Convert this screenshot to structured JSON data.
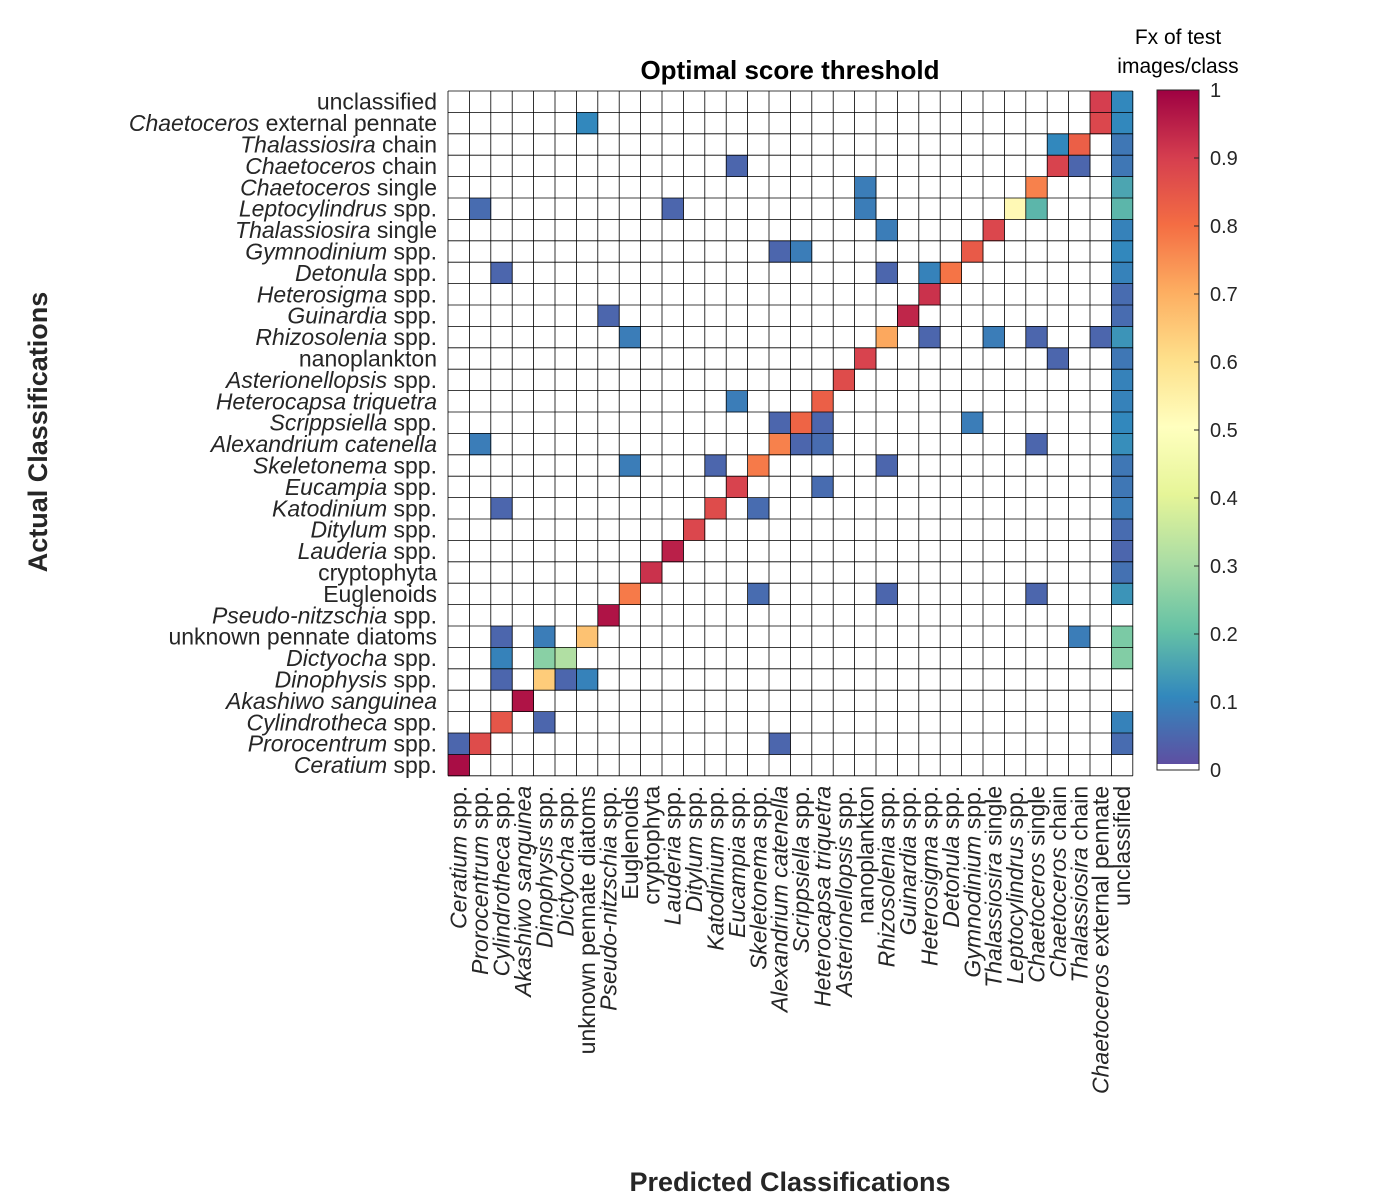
{
  "chart_data": {
    "type": "heatmap",
    "title": "Optimal score threshold",
    "xlabel": "Predicted Classifications",
    "ylabel": "Actual Classifications",
    "colorbar": {
      "title_line1": "Fx of test",
      "title_line2": "images/class",
      "range": [
        0,
        1
      ],
      "ticks": [
        "0",
        "0.1",
        "0.2",
        "0.3",
        "0.4",
        "0.5",
        "0.6",
        "0.7",
        "0.8",
        "0.9",
        "1"
      ],
      "colormap": "spectral (reversed)",
      "zero_color": "#ffffff"
    },
    "grid": true,
    "categories": [
      {
        "name": "Ceratium",
        "suffix": " spp."
      },
      {
        "name": "Prorocentrum",
        "suffix": " spp."
      },
      {
        "name": "Cylindrotheca",
        "suffix": " spp."
      },
      {
        "name": "Akashiwo sanguinea",
        "suffix": ""
      },
      {
        "name": "Dinophysis",
        "suffix": " spp."
      },
      {
        "name": "Dictyocha",
        "suffix": " spp."
      },
      {
        "name": "",
        "suffix": "unknown pennate diatoms"
      },
      {
        "name": "Pseudo-nitzschia",
        "suffix": " spp."
      },
      {
        "name": "",
        "suffix": "Euglenoids"
      },
      {
        "name": "",
        "suffix": "cryptophyta"
      },
      {
        "name": "Lauderia",
        "suffix": " spp."
      },
      {
        "name": "Ditylum",
        "suffix": " spp."
      },
      {
        "name": "Katodinium",
        "suffix": " spp."
      },
      {
        "name": "Eucampia",
        "suffix": " spp."
      },
      {
        "name": "Skeletonema",
        "suffix": " spp."
      },
      {
        "name": "Alexandrium catenella",
        "suffix": ""
      },
      {
        "name": "Scrippsiella",
        "suffix": " spp."
      },
      {
        "name": "Heterocapsa triquetra",
        "suffix": ""
      },
      {
        "name": "Asterionellopsis",
        "suffix": " spp."
      },
      {
        "name": "",
        "suffix": "nanoplankton"
      },
      {
        "name": "Rhizosolenia",
        "suffix": " spp."
      },
      {
        "name": "Guinardia",
        "suffix": " spp."
      },
      {
        "name": "Heterosigma",
        "suffix": " spp."
      },
      {
        "name": "Detonula",
        "suffix": " spp."
      },
      {
        "name": "Gymnodinium",
        "suffix": " spp."
      },
      {
        "name": "Thalassiosira",
        "suffix": " single"
      },
      {
        "name": "Leptocylindrus",
        "suffix": " spp."
      },
      {
        "name": "Chaetoceros",
        "suffix": " single"
      },
      {
        "name": "Chaetoceros",
        "suffix": " chain"
      },
      {
        "name": "Thalassiosira",
        "suffix": " chain"
      },
      {
        "name": "Chaetoceros",
        "suffix": " external pennate"
      },
      {
        "name": "",
        "suffix": "unclassified"
      }
    ],
    "note_rows": "rows = actual class (index into categories), cols = predicted class; values are fraction of test images per class",
    "cells": [
      [
        0,
        0,
        0.98
      ],
      [
        1,
        0,
        0.04
      ],
      [
        1,
        1,
        0.87
      ],
      [
        1,
        15,
        0.04
      ],
      [
        1,
        31,
        0.05
      ],
      [
        2,
        2,
        0.85
      ],
      [
        2,
        4,
        0.04
      ],
      [
        2,
        31,
        0.09
      ],
      [
        3,
        3,
        0.97
      ],
      [
        4,
        2,
        0.04
      ],
      [
        4,
        4,
        0.64
      ],
      [
        4,
        5,
        0.04
      ],
      [
        4,
        6,
        0.09
      ],
      [
        5,
        2,
        0.09
      ],
      [
        5,
        4,
        0.25
      ],
      [
        5,
        5,
        0.31
      ],
      [
        5,
        31,
        0.24
      ],
      [
        6,
        2,
        0.04
      ],
      [
        6,
        4,
        0.08
      ],
      [
        6,
        6,
        0.66
      ],
      [
        6,
        29,
        0.08
      ],
      [
        6,
        31,
        0.23
      ],
      [
        7,
        7,
        0.97
      ],
      [
        8,
        8,
        0.78
      ],
      [
        8,
        14,
        0.05
      ],
      [
        8,
        20,
        0.04
      ],
      [
        8,
        27,
        0.04
      ],
      [
        8,
        31,
        0.12
      ],
      [
        9,
        9,
        0.92
      ],
      [
        9,
        31,
        0.06
      ],
      [
        10,
        10,
        0.95
      ],
      [
        10,
        31,
        0.04
      ],
      [
        11,
        11,
        0.88
      ],
      [
        11,
        31,
        0.05
      ],
      [
        12,
        2,
        0.04
      ],
      [
        12,
        12,
        0.87
      ],
      [
        12,
        14,
        0.05
      ],
      [
        12,
        31,
        0.08
      ],
      [
        13,
        13,
        0.89
      ],
      [
        13,
        17,
        0.05
      ],
      [
        13,
        31,
        0.07
      ],
      [
        14,
        8,
        0.08
      ],
      [
        14,
        12,
        0.04
      ],
      [
        14,
        14,
        0.78
      ],
      [
        14,
        20,
        0.04
      ],
      [
        14,
        31,
        0.07
      ],
      [
        15,
        1,
        0.08
      ],
      [
        15,
        15,
        0.77
      ],
      [
        15,
        16,
        0.04
      ],
      [
        15,
        17,
        0.05
      ],
      [
        15,
        27,
        0.04
      ],
      [
        15,
        31,
        0.11
      ],
      [
        16,
        15,
        0.04
      ],
      [
        16,
        16,
        0.82
      ],
      [
        16,
        17,
        0.04
      ],
      [
        16,
        24,
        0.08
      ],
      [
        16,
        31,
        0.1
      ],
      [
        17,
        13,
        0.08
      ],
      [
        17,
        17,
        0.83
      ],
      [
        17,
        31,
        0.09
      ],
      [
        18,
        18,
        0.87
      ],
      [
        18,
        31,
        0.09
      ],
      [
        19,
        19,
        0.89
      ],
      [
        19,
        28,
        0.04
      ],
      [
        19,
        31,
        0.07
      ],
      [
        20,
        8,
        0.08
      ],
      [
        20,
        20,
        0.71
      ],
      [
        20,
        22,
        0.04
      ],
      [
        20,
        25,
        0.08
      ],
      [
        20,
        27,
        0.04
      ],
      [
        20,
        30,
        0.04
      ],
      [
        20,
        31,
        0.12
      ],
      [
        21,
        7,
        0.04
      ],
      [
        21,
        21,
        0.94
      ],
      [
        21,
        31,
        0.05
      ],
      [
        22,
        22,
        0.92
      ],
      [
        22,
        31,
        0.05
      ],
      [
        23,
        2,
        0.04
      ],
      [
        23,
        20,
        0.04
      ],
      [
        23,
        22,
        0.09
      ],
      [
        23,
        23,
        0.79
      ],
      [
        23,
        31,
        0.09
      ],
      [
        24,
        15,
        0.04
      ],
      [
        24,
        16,
        0.08
      ],
      [
        24,
        24,
        0.84
      ],
      [
        24,
        31,
        0.1
      ],
      [
        25,
        20,
        0.08
      ],
      [
        25,
        25,
        0.88
      ],
      [
        25,
        31,
        0.09
      ],
      [
        26,
        1,
        0.05
      ],
      [
        26,
        10,
        0.04
      ],
      [
        26,
        19,
        0.08
      ],
      [
        26,
        26,
        0.52
      ],
      [
        26,
        27,
        0.18
      ],
      [
        26,
        31,
        0.18
      ],
      [
        27,
        19,
        0.08
      ],
      [
        27,
        27,
        0.77
      ],
      [
        27,
        31,
        0.15
      ],
      [
        28,
        13,
        0.04
      ],
      [
        28,
        28,
        0.89
      ],
      [
        28,
        29,
        0.04
      ],
      [
        28,
        31,
        0.07
      ],
      [
        29,
        28,
        0.1
      ],
      [
        29,
        29,
        0.83
      ],
      [
        29,
        31,
        0.07
      ],
      [
        30,
        6,
        0.1
      ],
      [
        30,
        30,
        0.88
      ],
      [
        30,
        31,
        0.1
      ],
      [
        31,
        30,
        0.9
      ],
      [
        31,
        31,
        0.1
      ]
    ]
  }
}
